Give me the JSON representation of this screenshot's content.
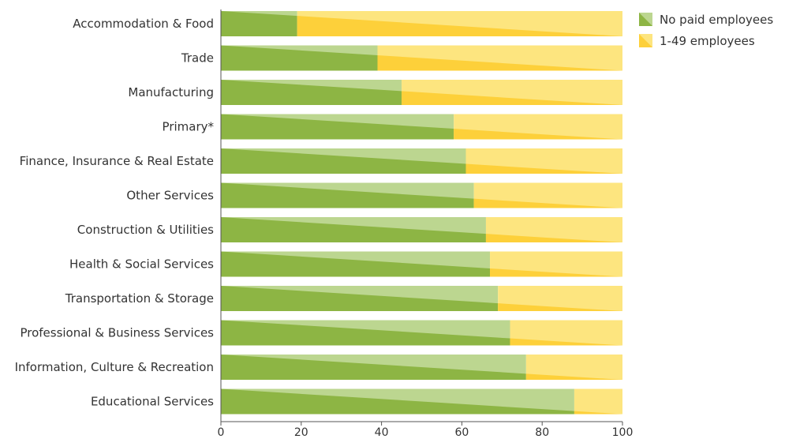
{
  "chart_data": {
    "type": "bar",
    "orientation": "horizontal",
    "stacked": true,
    "categories": [
      "Accommodation & Food",
      "Trade",
      "Manufacturing",
      "Primary*",
      "Finance, Insurance & Real Estate",
      "Other Services",
      "Construction & Utilities",
      "Health & Social Services",
      "Transportation & Storage",
      "Professional & Business Services",
      "Information, Culture & Recreation",
      "Educational Services"
    ],
    "series": [
      {
        "name": "No paid employees",
        "color": "#8db544",
        "color_light": "#bcd690",
        "values": [
          19,
          39,
          45,
          58,
          61,
          63,
          66,
          67,
          69,
          72,
          76,
          88
        ]
      },
      {
        "name": "1-49 employees",
        "color": "#fdd03a",
        "color_light": "#fde57f",
        "values": [
          81,
          61,
          55,
          42,
          39,
          37,
          34,
          33,
          31,
          28,
          24,
          12
        ]
      }
    ],
    "xlim": [
      0,
      100
    ],
    "xticks": [
      "0",
      "20",
      "40",
      "60",
      "80",
      "100"
    ],
    "legend_position": "top-right",
    "grid": false
  }
}
